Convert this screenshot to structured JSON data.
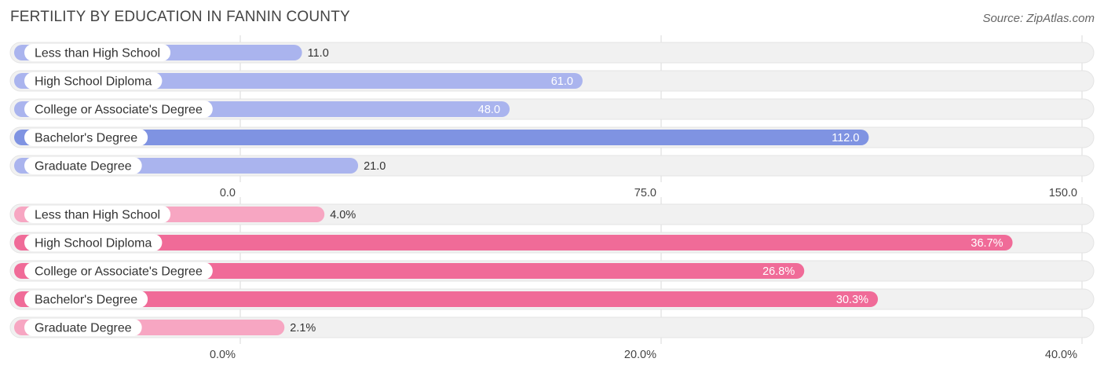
{
  "header": {
    "title": "FERTILITY BY EDUCATION IN FANNIN COUNTY",
    "source": "Source: ZipAtlas.com"
  },
  "colors": {
    "blue_light": "#aab4ee",
    "blue_strong": "#7f93e2",
    "pink_light": "#f7a6c2",
    "pink_strong": "#f06b98",
    "track": "#f1f1f1",
    "grid": "#d8d8d8"
  },
  "chart_data": [
    {
      "type": "bar",
      "orientation": "horizontal",
      "title": "FERTILITY BY EDUCATION IN FANNIN COUNTY",
      "categories": [
        "Less than High School",
        "High School Diploma",
        "College or Associate's Degree",
        "Bachelor's Degree",
        "Graduate Degree"
      ],
      "values": [
        11.0,
        61.0,
        48.0,
        112.0,
        21.0
      ],
      "value_labels": [
        "11.0",
        "61.0",
        "48.0",
        "112.0",
        "21.0"
      ],
      "xlim": [
        0,
        150
      ],
      "ticks": [
        0,
        75,
        150
      ],
      "tick_labels": [
        "0.0",
        "75.0",
        "150.0"
      ],
      "color": "blue"
    },
    {
      "type": "bar",
      "orientation": "horizontal",
      "categories": [
        "Less than High School",
        "High School Diploma",
        "College or Associate's Degree",
        "Bachelor's Degree",
        "Graduate Degree"
      ],
      "values": [
        4.0,
        36.7,
        26.8,
        30.3,
        2.1
      ],
      "value_labels": [
        "4.0%",
        "36.7%",
        "26.8%",
        "30.3%",
        "2.1%"
      ],
      "xlim": [
        0,
        40
      ],
      "ticks": [
        0,
        20,
        40
      ],
      "tick_labels": [
        "0.0%",
        "20.0%",
        "40.0%"
      ],
      "color": "pink"
    }
  ]
}
